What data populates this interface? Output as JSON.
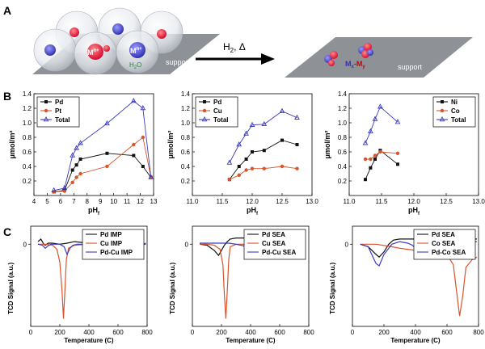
{
  "panel_labels": {
    "a": "A",
    "b": "B",
    "c": "C"
  },
  "schematic": {
    "arrow_label": "H",
    "arrow_label_sub": "2",
    "arrow_label_rest": ", Δ",
    "left_surface_label": "support",
    "right_surface_label": "support",
    "cation_1": "M",
    "cation_1_sup": "n+",
    "cation_2": "M",
    "cation_2_sup": "n+",
    "water_label": "H",
    "water_sub": "2",
    "water_rest": "O",
    "product_label_a": "M",
    "product_label_a_sub": "x",
    "product_label_dash": "-",
    "product_label_b": "M",
    "product_label_b_sub": "y"
  },
  "chart_data": [
    {
      "id": "b1",
      "type": "line",
      "xlabel": "pH",
      "xlabel_sub": "f",
      "ylabel": "μmol/m²",
      "xlim": [
        4,
        13
      ],
      "ylim": [
        0,
        1.4
      ],
      "xticks": [
        "4",
        "5",
        "6",
        "7",
        "8",
        "9",
        "10",
        "11",
        "12",
        "13"
      ],
      "yticks": [
        "0.2",
        "0.4",
        "0.6",
        "0.8",
        "1.0",
        "1.2",
        "1.4"
      ],
      "series": [
        {
          "name": "Pd",
          "color": "#111111",
          "marker": "square",
          "x": [
            5.5,
            6.3,
            6.9,
            7.2,
            7.5,
            9.5,
            11.5,
            12.2,
            12.8
          ],
          "y": [
            0.05,
            0.07,
            0.35,
            0.42,
            0.5,
            0.58,
            0.55,
            0.4,
            0.25
          ]
        },
        {
          "name": "Pt",
          "color": "#d9532b",
          "marker": "circle",
          "x": [
            5.5,
            6.3,
            6.9,
            7.2,
            7.5,
            9.5,
            11.5,
            12.2,
            12.8
          ],
          "y": [
            0.05,
            0.06,
            0.18,
            0.25,
            0.3,
            0.4,
            0.7,
            0.8,
            0.25
          ]
        },
        {
          "name": "Total",
          "color": "#3b3bbf",
          "marker": "triangle",
          "x": [
            5.5,
            6.3,
            6.9,
            7.2,
            7.5,
            9.5,
            11.5,
            12.2,
            12.8
          ],
          "y": [
            0.07,
            0.1,
            0.55,
            0.65,
            0.72,
            0.99,
            1.3,
            1.2,
            0.25
          ]
        }
      ]
    },
    {
      "id": "b2",
      "type": "line",
      "xlabel": "pH",
      "xlabel_sub": "f",
      "ylabel": "μmol/m²",
      "xlim": [
        11.0,
        13.0
      ],
      "ylim": [
        0,
        1.4
      ],
      "xticks": [
        "11.0",
        "11.5",
        "12.0",
        "12.5",
        "13.0"
      ],
      "yticks": [
        "0.2",
        "0.4",
        "0.6",
        "0.8",
        "1.0",
        "1.2",
        "1.4"
      ],
      "series": [
        {
          "name": "Pd",
          "color": "#111111",
          "marker": "square",
          "x": [
            11.62,
            11.78,
            11.9,
            12.0,
            12.2,
            12.5,
            12.75
          ],
          "y": [
            0.22,
            0.4,
            0.5,
            0.6,
            0.62,
            0.76,
            0.7
          ]
        },
        {
          "name": "Cu",
          "color": "#d9532b",
          "marker": "circle",
          "x": [
            11.62,
            11.78,
            11.9,
            12.0,
            12.2,
            12.5,
            12.75
          ],
          "y": [
            0.22,
            0.28,
            0.35,
            0.37,
            0.37,
            0.4,
            0.37
          ]
        },
        {
          "name": "Total",
          "color": "#3b3bbf",
          "marker": "triangle",
          "x": [
            11.62,
            11.78,
            11.9,
            12.0,
            12.2,
            12.5,
            12.75
          ],
          "y": [
            0.45,
            0.7,
            0.85,
            0.97,
            0.98,
            1.16,
            1.07
          ]
        }
      ]
    },
    {
      "id": "b3",
      "type": "line",
      "xlabel": "pH",
      "xlabel_sub": "f",
      "ylabel": "μmol/m²",
      "xlim": [
        11.0,
        13.0
      ],
      "ylim": [
        0,
        1.4
      ],
      "xticks": [
        "11.0",
        "11.5",
        "12.0",
        "12.5",
        "13.0"
      ],
      "yticks": [
        "0.2",
        "0.4",
        "0.6",
        "0.8",
        "1.0",
        "1.2",
        "1.4"
      ],
      "series": [
        {
          "name": "Ni",
          "color": "#111111",
          "marker": "square",
          "x": [
            11.25,
            11.33,
            11.4,
            11.48,
            11.75
          ],
          "y": [
            0.22,
            0.38,
            0.5,
            0.62,
            0.43
          ]
        },
        {
          "name": "Co",
          "color": "#d9532b",
          "marker": "circle",
          "x": [
            11.25,
            11.33,
            11.4,
            11.48,
            11.75
          ],
          "y": [
            0.5,
            0.5,
            0.55,
            0.6,
            0.58
          ]
        },
        {
          "name": "Total",
          "color": "#3b3bbf",
          "marker": "triangle",
          "x": [
            11.25,
            11.33,
            11.4,
            11.48,
            11.75
          ],
          "y": [
            0.72,
            0.88,
            1.05,
            1.22,
            1.01
          ]
        }
      ]
    },
    {
      "id": "c1",
      "type": "line",
      "xlabel": "Temperature (C)",
      "ylabel": "TCD Signal (a.u.)",
      "xlim": [
        0,
        800
      ],
      "ylim": [
        -1.6,
        0.35
      ],
      "xticks": [
        "0",
        "200",
        "400",
        "600",
        "800"
      ],
      "ytick_label": "0",
      "series": [
        {
          "name": "Pd IMP",
          "color": "#111111",
          "x": [
            50,
            70,
            90,
            100,
            120,
            150,
            200,
            250,
            300,
            400,
            500,
            600,
            700,
            750,
            790
          ],
          "y": [
            0.05,
            0.1,
            0.0,
            -0.02,
            0.02,
            0.02,
            0.0,
            0.02,
            0.05,
            0.02,
            0.03,
            0.0,
            0.0,
            -0.05,
            0.02
          ]
        },
        {
          "name": "Cu IMP",
          "color": "#d9532b",
          "x": [
            50,
            100,
            150,
            180,
            200,
            215,
            225,
            235,
            245,
            260,
            300,
            400,
            500,
            600,
            700,
            790
          ],
          "y": [
            0.0,
            0.0,
            -0.02,
            -0.1,
            -0.35,
            -0.9,
            -1.45,
            -0.9,
            -0.3,
            -0.08,
            -0.02,
            0.0,
            0.0,
            0.0,
            -0.02,
            0.0
          ]
        },
        {
          "name": "Pd-Cu IMP",
          "color": "#3b3bbf",
          "x": [
            50,
            80,
            100,
            120,
            140,
            200,
            230,
            250,
            270,
            290,
            320,
            400,
            500,
            600,
            700,
            790
          ],
          "y": [
            0.0,
            -0.02,
            -0.08,
            -0.03,
            0.0,
            0.0,
            -0.05,
            -0.2,
            -0.08,
            -0.02,
            0.0,
            0.0,
            0.0,
            0.0,
            -0.03,
            0.0
          ]
        }
      ]
    },
    {
      "id": "c2",
      "type": "line",
      "xlabel": "Temperature (C)",
      "ylabel": "TCD Signal (a.u.)",
      "xlim": [
        0,
        800
      ],
      "ylim": [
        -1.6,
        0.35
      ],
      "xticks": [
        "0",
        "200",
        "400",
        "600",
        "800"
      ],
      "ytick_label": "0",
      "series": [
        {
          "name": "Pd SEA",
          "color": "#111111",
          "x": [
            50,
            100,
            150,
            180,
            200,
            220,
            240,
            260,
            300,
            400,
            500,
            600,
            700
          ],
          "y": [
            0.0,
            -0.02,
            -0.12,
            -0.22,
            -0.12,
            -0.02,
            0.05,
            0.1,
            0.12,
            0.12,
            0.12,
            0.11,
            0.1
          ]
        },
        {
          "name": "Cu SEA",
          "color": "#d9532b",
          "x": [
            50,
            100,
            150,
            190,
            210,
            220,
            230,
            240,
            250,
            260,
            300,
            400,
            500,
            600,
            700
          ],
          "y": [
            0.0,
            0.0,
            -0.02,
            -0.1,
            -0.4,
            -1.0,
            -1.45,
            -0.9,
            -0.3,
            -0.05,
            0.0,
            0.0,
            0.0,
            0.0,
            0.0
          ]
        },
        {
          "name": "Pd-Cu SEA",
          "color": "#3b3bbf",
          "x": [
            50,
            150,
            200,
            250,
            300,
            350,
            380,
            400,
            420,
            450,
            500,
            600,
            700
          ],
          "y": [
            0.02,
            0.02,
            0.02,
            0.02,
            0.0,
            -0.03,
            -0.08,
            -0.05,
            -0.02,
            0.0,
            0.02,
            0.02,
            0.02
          ]
        }
      ]
    },
    {
      "id": "c3",
      "type": "line",
      "xlabel": "Temperature (C)",
      "ylabel": "TCD Signal (a.u.)",
      "xlim": [
        0,
        800
      ],
      "ylim": [
        -1.6,
        0.35
      ],
      "xticks": [
        "0",
        "200",
        "400",
        "600",
        "800"
      ],
      "ytick_label": "0",
      "series": [
        {
          "name": "Pd SEA",
          "color": "#111111",
          "x": [
            50,
            100,
            150,
            170,
            200,
            230,
            260,
            300,
            400,
            500,
            600,
            700,
            790
          ],
          "y": [
            0.0,
            -0.05,
            -0.2,
            -0.25,
            -0.15,
            0.0,
            0.08,
            0.1,
            0.1,
            0.1,
            0.1,
            0.1,
            0.1
          ]
        },
        {
          "name": "Co SEA",
          "color": "#d9532b",
          "x": [
            50,
            150,
            250,
            300,
            400,
            500,
            550,
            600,
            640,
            660,
            680,
            700,
            720,
            760,
            790
          ],
          "y": [
            0.0,
            0.0,
            -0.05,
            -0.08,
            -0.12,
            -0.15,
            -0.17,
            -0.2,
            -0.4,
            -0.9,
            -1.4,
            -1.0,
            -0.45,
            -0.3,
            -0.25
          ]
        },
        {
          "name": "Pd-Co SEA",
          "color": "#3b3bbf",
          "x": [
            50,
            100,
            130,
            150,
            170,
            200,
            250,
            300,
            350,
            380,
            400,
            420,
            450,
            500,
            600,
            700,
            790
          ],
          "y": [
            0.0,
            -0.05,
            -0.25,
            -0.38,
            -0.42,
            -0.2,
            0.0,
            0.05,
            0.02,
            -0.02,
            -0.08,
            -0.03,
            0.02,
            0.05,
            0.05,
            0.05,
            0.05
          ]
        }
      ]
    }
  ]
}
